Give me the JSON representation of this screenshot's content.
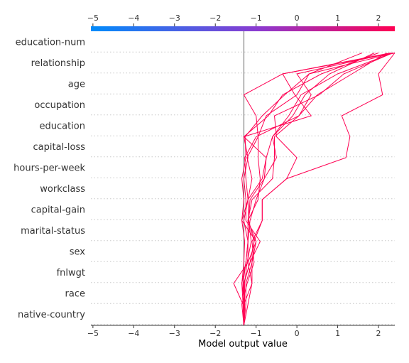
{
  "chart_data": {
    "type": "line",
    "subtype": "decision-plot",
    "title": "",
    "xlabel": "Model output value",
    "ylabel": "",
    "xlim": [
      -5.05,
      2.4
    ],
    "x_ticks": [
      -5,
      -4,
      -3,
      -2,
      -1,
      0,
      1,
      2
    ],
    "x_tick_labels": [
      "−5",
      "−4",
      "−3",
      "−2",
      "−1",
      "0",
      "1",
      "2"
    ],
    "base_value": -1.3,
    "features": [
      "education-num",
      "relationship",
      "age",
      "occupation",
      "education",
      "capital-loss",
      "hours-per-week",
      "workclass",
      "capital-gain",
      "marital-status",
      "sex",
      "fnlwgt",
      "race",
      "native-country"
    ],
    "colorbar": {
      "low_color": "#008bfb",
      "high_color": "#ff0052"
    },
    "line_color": "#ff0052",
    "grid": "dotted horizontal",
    "series": [
      {
        "values": [
          -1.3,
          -1.28,
          -1.3,
          -1.15,
          -1.05,
          -0.85,
          -0.85,
          -0.25,
          1.2,
          1.3,
          1.1,
          2.1,
          2.0,
          2.4
        ]
      },
      {
        "values": [
          -1.3,
          -1.3,
          -1.32,
          -1.25,
          -1.2,
          -1.2,
          -0.95,
          -0.9,
          -0.95,
          -0.95,
          -1.0,
          -1.3,
          -0.35,
          2.4
        ]
      },
      {
        "values": [
          -1.3,
          -1.32,
          -1.35,
          -1.3,
          -1.28,
          -1.35,
          -1.3,
          -1.35,
          -1.25,
          -1.27,
          -0.85,
          -0.3,
          0.3,
          2.4
        ]
      },
      {
        "values": [
          -1.3,
          -1.28,
          -1.35,
          -1.25,
          -1.2,
          -1.15,
          -1.0,
          -0.8,
          -0.75,
          -0.6,
          -0.2,
          0.1,
          1.0,
          2.35
        ]
      },
      {
        "values": [
          -1.3,
          -1.3,
          -1.1,
          -1.2,
          -1.2,
          -1.3,
          -1.2,
          -0.85,
          -0.75,
          -1.3,
          0.35,
          -0.05,
          -0.35,
          2.3
        ]
      },
      {
        "values": [
          -1.3,
          -1.35,
          -1.22,
          -1.05,
          -1.1,
          -0.85,
          -0.85,
          -0.25,
          0.0,
          -0.5,
          -0.55,
          0.55,
          1.15,
          2.35
        ]
      },
      {
        "values": [
          -1.3,
          -1.25,
          -1.25,
          -1.1,
          -1.0,
          -1.2,
          -1.1,
          -0.6,
          -0.55,
          -0.55,
          0.05,
          0.35,
          0.0,
          2.3
        ]
      },
      {
        "values": [
          -1.3,
          -1.2,
          -1.1,
          -1.1,
          -1.05,
          -1.18,
          -1.2,
          -1.25,
          -1.28,
          -1.0,
          0.05,
          0.5,
          1.35,
          2.2
        ]
      },
      {
        "values": [
          -1.3,
          -1.3,
          -1.3,
          -1.15,
          -0.9,
          -1.25,
          -1.25,
          -1.3,
          -1.2,
          -1.3,
          -0.7,
          -0.35,
          0.6,
          2.0
        ]
      },
      {
        "values": [
          -1.3,
          -1.32,
          -1.55,
          -1.2,
          -1.0,
          -1.35,
          -1.2,
          -1.1,
          -1.22,
          -0.95,
          -0.75,
          0.0,
          0.3,
          1.6
        ]
      },
      {
        "values": [
          -1.3,
          -1.28,
          -1.28,
          -1.22,
          -1.12,
          -1.18,
          -1.15,
          -0.8,
          -0.5,
          -0.6,
          -0.1,
          0.2,
          0.8,
          1.9
        ]
      }
    ]
  }
}
